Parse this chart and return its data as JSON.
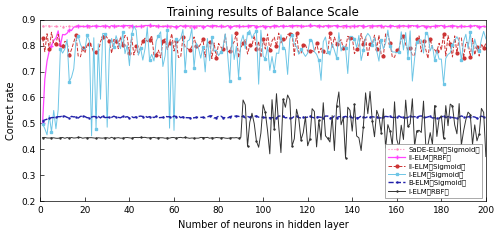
{
  "title": "Training results of Balance Scale",
  "xlabel": "Number of neurons in hidden layer",
  "ylabel": "Correct rate",
  "xlim": [
    0,
    200
  ],
  "ylim": [
    0.2,
    0.9
  ],
  "yticks": [
    0.2,
    0.3,
    0.4,
    0.5,
    0.6,
    0.7,
    0.8,
    0.9
  ],
  "xticks": [
    0,
    20,
    40,
    60,
    80,
    100,
    120,
    140,
    160,
    180,
    200
  ],
  "legend_entries": [
    "I-ELM（Sigmoid）",
    "II-ELM（Sigmoid）",
    "I-ELM（RBF）",
    "II-ELM（RBF）",
    "B-ELM（Sigmoid）",
    "SaDE-ELM（Sigmoid）"
  ],
  "colors": {
    "I_ELM_Sigmoid": "#6EC6E6",
    "II_ELM_Sigmoid": "#CC3333",
    "I_ELM_RBF": "#333333",
    "II_ELM_RBF": "#FF44FF",
    "B_ELM_Sigmoid": "#2222AA",
    "SaDE_ELM_Sigmoid": "#FF88BB"
  }
}
